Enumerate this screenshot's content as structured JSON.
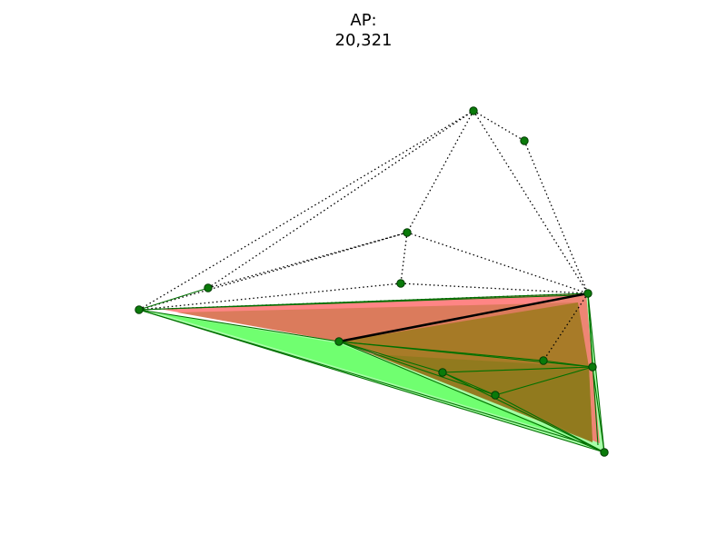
{
  "title": {
    "line1": "AP:",
    "line2": "20,321"
  },
  "colors": {
    "node": "#006400",
    "node_stroke": "#003300",
    "edge_solid": "#007000",
    "edge_dotted": "#000000",
    "highlight_edge": "#000000",
    "green_fill": "#66ff66",
    "red_fill": "#ff6666",
    "overlap_fill": "#8f7a1e"
  }
}
